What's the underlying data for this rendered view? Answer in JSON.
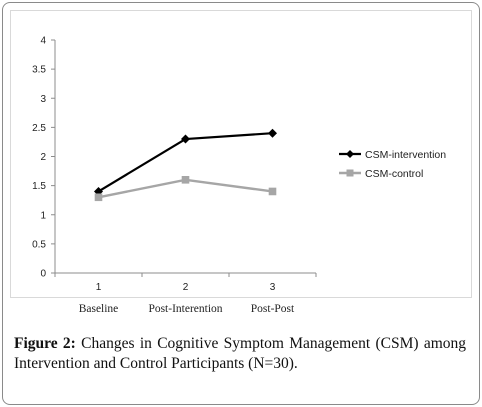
{
  "caption": {
    "label": "Figure 2:",
    "text": "Changes in Cognitive Symptom Management (CSM) among Intervention and Control Participants (N=30)."
  },
  "chart_data": {
    "type": "line",
    "x": [
      1,
      2,
      3
    ],
    "x_tick_labels": [
      "1",
      "2",
      "3"
    ],
    "categories": [
      "Baseline",
      "Post-Interention",
      "Post-Post"
    ],
    "ylim": [
      0,
      4
    ],
    "y_ticks": [
      0,
      0.5,
      1,
      1.5,
      2,
      2.5,
      3,
      3.5,
      4
    ],
    "grid": false,
    "legend_position": "right",
    "series": [
      {
        "name": "CSM-intervention",
        "values": [
          1.4,
          2.3,
          2.4
        ],
        "color": "#000000",
        "marker": "diamond"
      },
      {
        "name": "CSM-control",
        "values": [
          1.3,
          1.6,
          1.4
        ],
        "color": "#a6a6a6",
        "marker": "square"
      }
    ]
  }
}
